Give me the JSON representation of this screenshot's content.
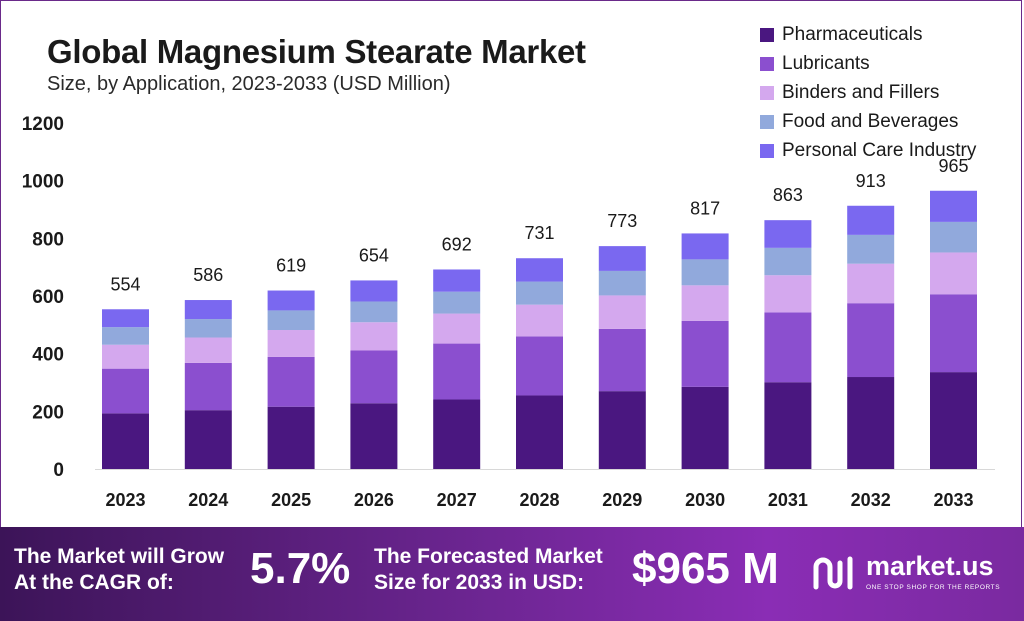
{
  "header": {
    "title": "Global Magnesium Stearate Market",
    "subtitle": "Size, by Application, 2023-2033 (USD Million)"
  },
  "legend": [
    {
      "label": "Pharmaceuticals",
      "color": "#4a1780"
    },
    {
      "label": "Lubricants",
      "color": "#8b4fcf"
    },
    {
      "label": "Binders and Fillers",
      "color": "#d4a8ee"
    },
    {
      "label": "Food and Beverages",
      "color": "#91a9dc"
    },
    {
      "label": "Personal Care Industry",
      "color": "#7a68f0"
    }
  ],
  "chart_data": {
    "type": "bar",
    "stacked": true,
    "title": "Global Magnesium Stearate Market",
    "subtitle": "Size, by Application, 2023-2033 (USD Million)",
    "categories": [
      "2023",
      "2024",
      "2025",
      "2026",
      "2027",
      "2028",
      "2029",
      "2030",
      "2031",
      "2032",
      "2033"
    ],
    "series": [
      {
        "name": "Pharmaceuticals",
        "values": [
          193,
          204,
          216,
          228,
          241,
          255,
          270,
          285,
          301,
          319,
          336
        ]
      },
      {
        "name": "Lubricants",
        "values": [
          155,
          164,
          173,
          183,
          194,
          205,
          216,
          229,
          242,
          256,
          270
        ]
      },
      {
        "name": "Binders and Fillers",
        "values": [
          83,
          88,
          93,
          98,
          104,
          110,
          116,
          123,
          129,
          137,
          145
        ]
      },
      {
        "name": "Food and Beverages",
        "values": [
          61,
          64,
          68,
          72,
          76,
          80,
          85,
          90,
          95,
          100,
          106
        ]
      },
      {
        "name": "Personal Care Industry",
        "values": [
          62,
          66,
          69,
          73,
          77,
          81,
          86,
          90,
          96,
          101,
          108
        ]
      }
    ],
    "totals": [
      554,
      586,
      619,
      654,
      692,
      731,
      773,
      817,
      863,
      913,
      965
    ],
    "yticks": [
      0,
      200,
      400,
      600,
      800,
      1000,
      1200
    ],
    "ylim": [
      0,
      1200
    ],
    "grid": false,
    "legend_position": "top-right"
  },
  "footer": {
    "cagr_label_line1": "The Market will Grow",
    "cagr_label_line2": "At the CAGR of:",
    "cagr_value": "5.7%",
    "forecast_label_line1": "The Forecasted Market",
    "forecast_label_line2": "Size for 2033 in USD:",
    "forecast_value": "$965 M",
    "brand": "market.us",
    "tagline": "ONE STOP SHOP FOR THE REPORTS"
  }
}
